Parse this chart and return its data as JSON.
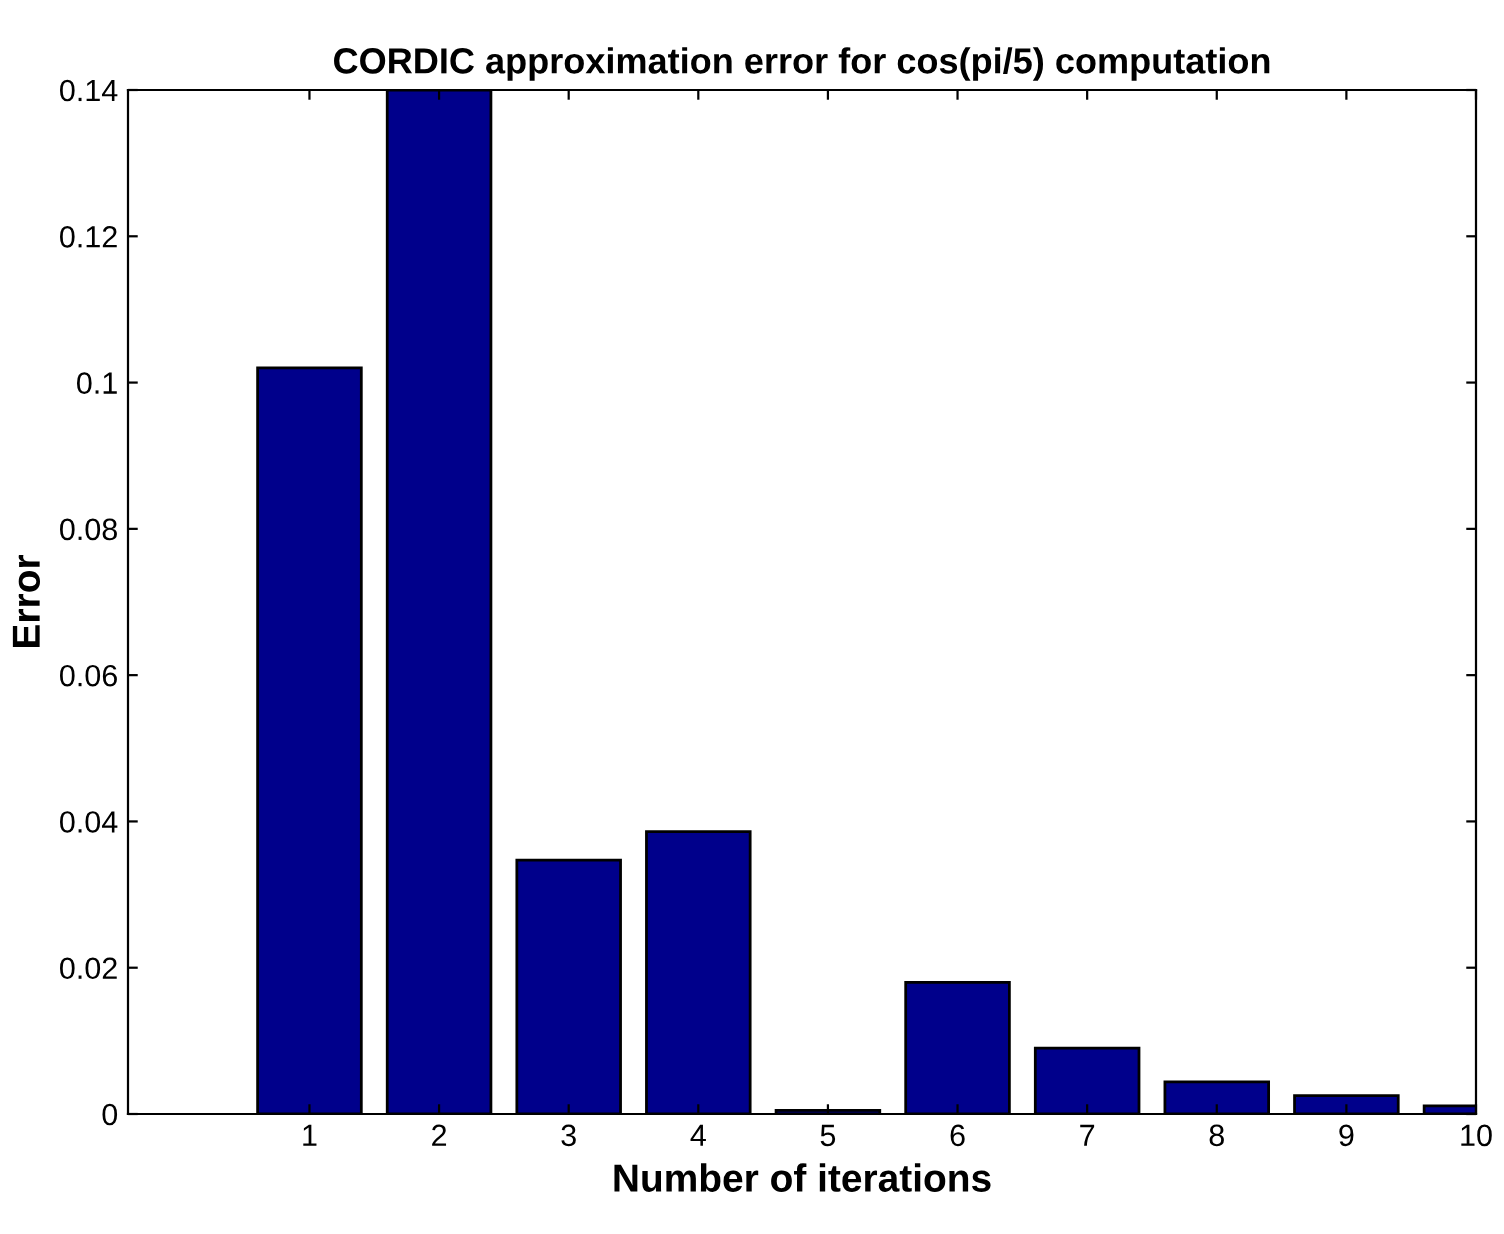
{
  "chart_data": {
    "type": "bar",
    "title": "CORDIC approximation error for cos(pi/5) computation",
    "xlabel": "Number of iterations",
    "ylabel": "Error",
    "x": [
      1,
      2,
      3,
      4,
      5,
      6,
      7,
      8,
      9,
      10
    ],
    "values": [
      0.102,
      0.14,
      0.0347,
      0.0386,
      0.0005,
      0.018,
      0.009,
      0.0044,
      0.0025,
      0.0011
    ],
    "color": "#00008b",
    "xlim": [
      -0.4,
      10
    ],
    "xticks": [
      1,
      2,
      3,
      4,
      5,
      6,
      7,
      8,
      9,
      10
    ],
    "ylim": [
      0,
      0.14
    ],
    "yticks": [
      0,
      0.02,
      0.04,
      0.06,
      0.08,
      0.1,
      0.12,
      0.14
    ],
    "grid": false
  }
}
